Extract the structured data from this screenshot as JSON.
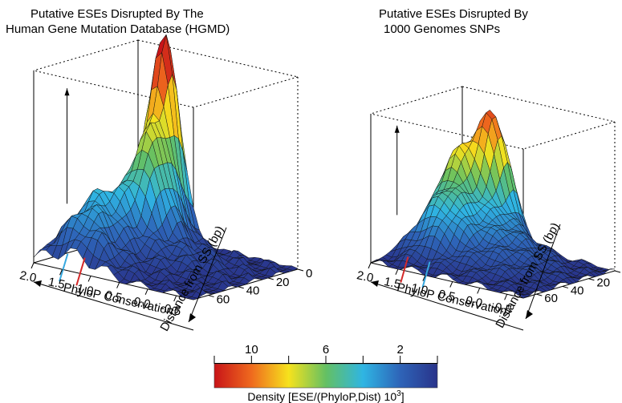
{
  "chart_data": [
    {
      "type": "surface",
      "title_lines": [
        "Putative ESEs Disrupted By The",
        "Human Gene Mutation Database (HGMD)"
      ],
      "x_axis": {
        "label": "PhyloP Conservation",
        "ticks": [
          "2.0",
          "1.5",
          "1.0",
          "0.5",
          "0.0",
          "-0.5"
        ],
        "range": [
          2.0,
          -0.8
        ]
      },
      "y_axis": {
        "label": "Distance from SS (bp)",
        "ticks": [
          "0",
          "20",
          "40",
          "60"
        ],
        "range": [
          0,
          70
        ]
      },
      "peak": {
        "phylop": 1.4,
        "distance_bp": 5,
        "density": 11
      },
      "markers": [
        {
          "phylop": 1.55,
          "color": "#36a8e0"
        },
        {
          "phylop": 1.25,
          "color": "#d42a2a"
        }
      ]
    },
    {
      "type": "surface",
      "title_lines": [
        "Putative ESEs Disrupted By",
        "1000 Genomes SNPs"
      ],
      "x_axis": {
        "label": "PhyloP Conservation",
        "ticks": [
          "2.0",
          "1.5",
          "1.0",
          "0.5",
          "0.0",
          "-0.5"
        ],
        "range": [
          2.0,
          -0.8
        ]
      },
      "y_axis": {
        "label": "Distance from SS (bp)",
        "ticks": [
          "0",
          "20",
          "40",
          "60"
        ],
        "range": [
          0,
          70
        ]
      },
      "peak": {
        "phylop": 1.1,
        "distance_bp": 3,
        "density": 8.5
      },
      "markers": [
        {
          "phylop": 1.45,
          "color": "#d42a2a"
        },
        {
          "phylop": 1.05,
          "color": "#36a8e0"
        }
      ]
    }
  ],
  "colorbar": {
    "label_prefix": "Density [ESE/(PhyloP,Dist) 10",
    "label_exp": "3",
    "label_suffix": "]",
    "ticks": [
      "10",
      "6",
      "2"
    ],
    "tick_values": [
      10,
      6,
      2
    ],
    "range": [
      12,
      0
    ],
    "colors": [
      "#c81418",
      "#ef6a1e",
      "#f6e21d",
      "#64c063",
      "#2fb5e3",
      "#2e64b8",
      "#29338a"
    ]
  }
}
